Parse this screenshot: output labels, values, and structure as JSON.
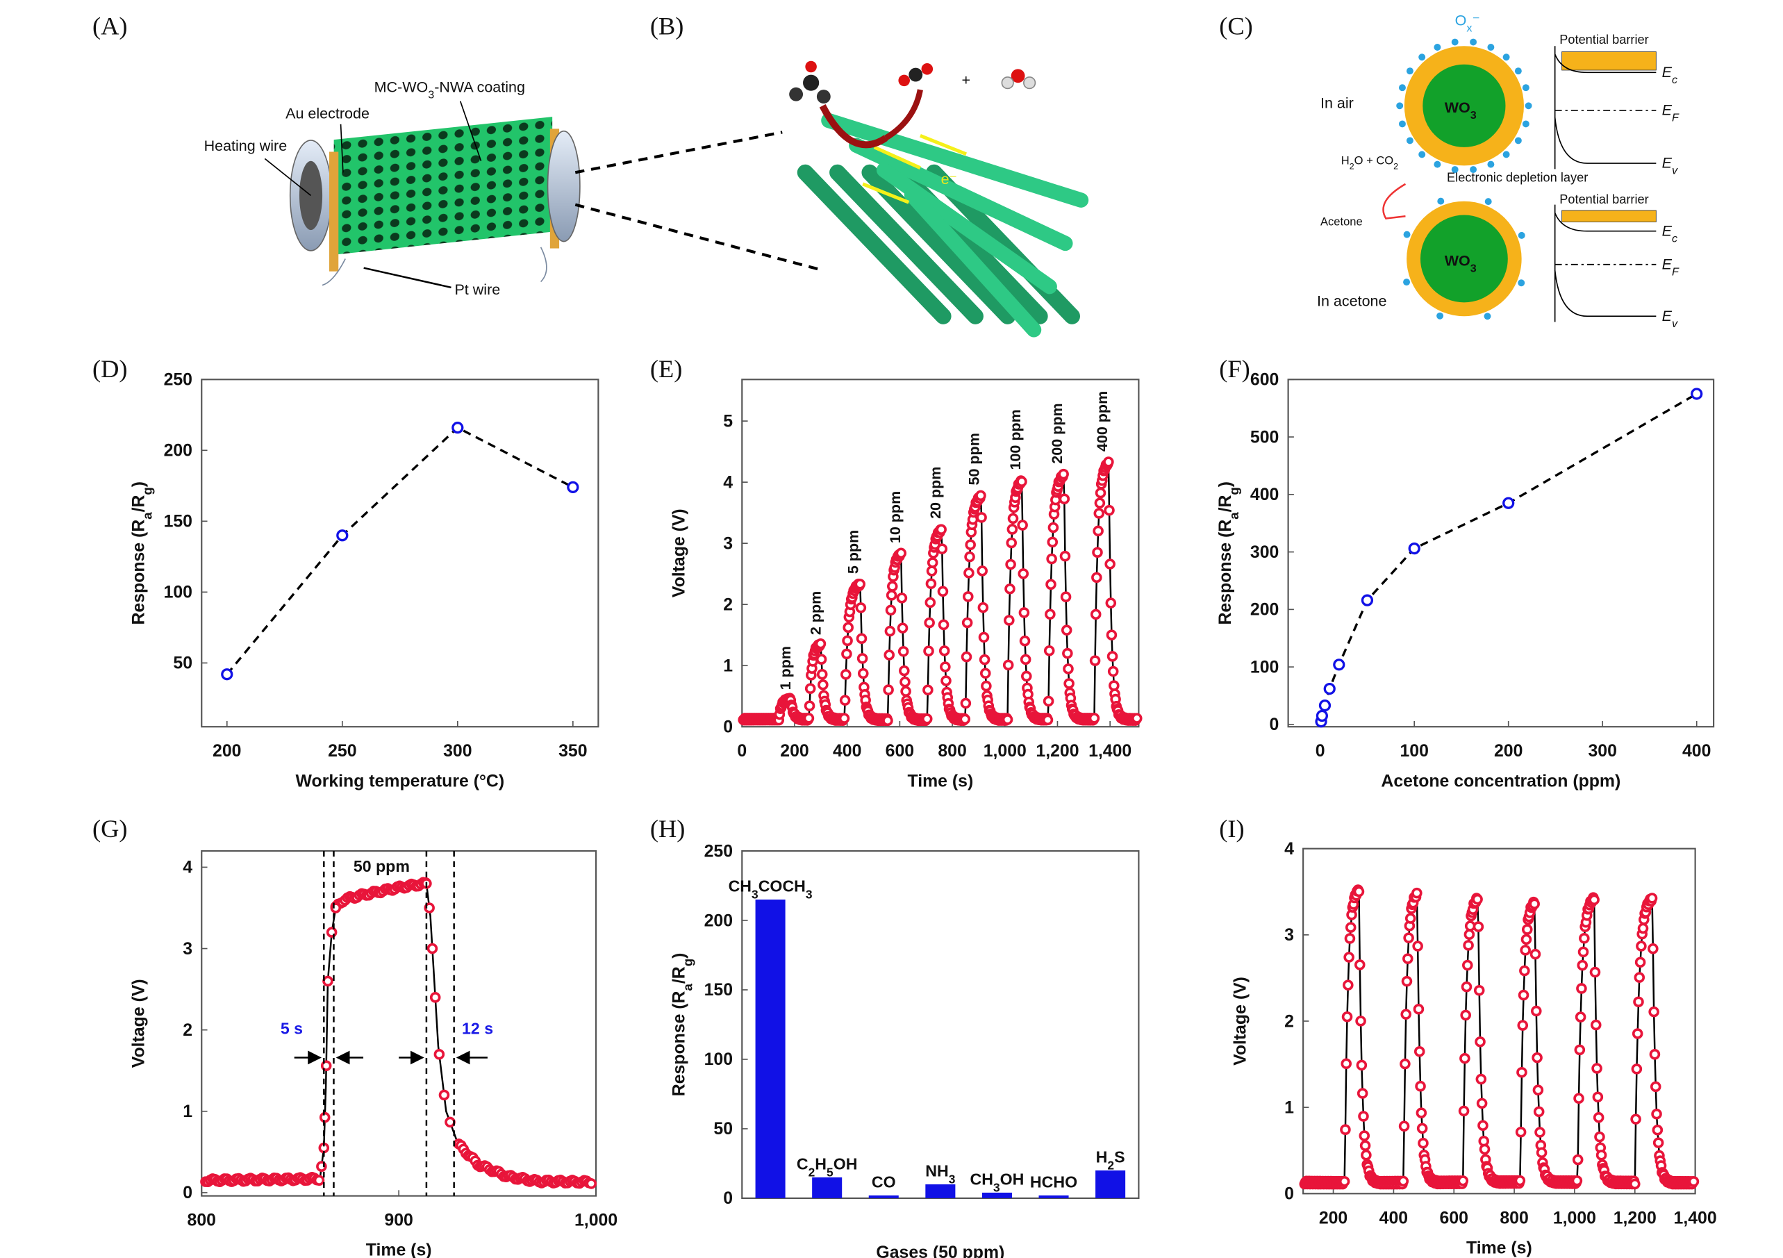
{
  "panel_labels": [
    "(A)",
    "(B)",
    "(C)",
    "(D)",
    "(E)",
    "(F)",
    "(G)",
    "(H)",
    "(I)"
  ],
  "panel_a": {
    "coating_label": "MC-WO_3-NWA coating",
    "electrode_label": "Au electrode",
    "heating_label": "Heating wire",
    "pt_label": "Pt wire"
  },
  "panel_b": {
    "electron_label": "e⁻",
    "plus": "+"
  },
  "panel_c": {
    "ox_label": "O_x⁻",
    "air_label": "In air",
    "acetone_env_label": "In acetone",
    "core_label": "WO_3",
    "products_label": "H_2O + CO_2",
    "acetone_label": "Acetone",
    "depletion_label": "Electronic depletion layer",
    "barrier_label": "Potential barrier",
    "ec": "E_c",
    "ef": "E_F",
    "ev": "E_v",
    "colors": {
      "shell": "#f6b21a",
      "core": "#12a12a",
      "ions": "#2ba3e0"
    }
  },
  "colors": {
    "marker": "#e8153a",
    "blue": "#1111e6",
    "line": "#000000"
  },
  "chart_data": [
    {
      "panel": "D",
      "type": "line",
      "xlabel": "Working temperature (°C)",
      "ylabel": "Response (R_a/R_g)",
      "x": [
        200,
        250,
        300,
        350
      ],
      "y": [
        42,
        140,
        216,
        174
      ],
      "xlim": [
        189,
        361
      ],
      "ylim": [
        5,
        250
      ],
      "xticks": [
        200,
        250,
        300,
        350
      ],
      "yticks": [
        50,
        100,
        150,
        200,
        250
      ],
      "xtick_labels": [
        "200",
        "250",
        "300",
        "350"
      ],
      "ytick_labels": [
        "50",
        "100",
        "150",
        "200",
        "250"
      ],
      "grid": false
    },
    {
      "panel": "E",
      "type": "line",
      "xlabel": "Time (s)",
      "ylabel": "Voltage (V)",
      "xlim": [
        0,
        1509
      ],
      "ylim": [
        0,
        5.68
      ],
      "xticks": [
        0,
        200,
        400,
        600,
        800,
        1000,
        1200,
        1400
      ],
      "yticks": [
        0,
        1,
        2,
        3,
        4,
        5
      ],
      "xtick_labels": [
        "0",
        "200",
        "400",
        "600",
        "800",
        "1,000",
        "1,200",
        "1,400"
      ],
      "ytick_labels": [
        "0",
        "1",
        "2",
        "3",
        "4",
        "5"
      ],
      "baseline": 0.12,
      "pulses": [
        {
          "label": "1 ppm",
          "on": 140,
          "off": 185,
          "peak": 0.45
        },
        {
          "label": "2 ppm",
          "on": 255,
          "off": 300,
          "peak": 1.35
        },
        {
          "label": "5 ppm",
          "on": 390,
          "off": 450,
          "peak": 2.35
        },
        {
          "label": "10 ppm",
          "on": 555,
          "off": 605,
          "peak": 2.85
        },
        {
          "label": "20 ppm",
          "on": 705,
          "off": 760,
          "peak": 3.25
        },
        {
          "label": "50 ppm",
          "on": 850,
          "off": 910,
          "peak": 3.8
        },
        {
          "label": "100 ppm",
          "on": 1010,
          "off": 1065,
          "peak": 4.05
        },
        {
          "label": "200 ppm",
          "on": 1165,
          "off": 1225,
          "peak": 4.15
        },
        {
          "label": "400 ppm",
          "on": 1340,
          "off": 1395,
          "peak": 4.35
        }
      ],
      "grid": false
    },
    {
      "panel": "F",
      "type": "line",
      "xlabel": "Acetone concentration (ppm)",
      "ylabel": "Response (R_a/R_g)",
      "x": [
        1,
        2,
        5,
        10,
        20,
        50,
        100,
        200,
        400
      ],
      "y": [
        5,
        15,
        33,
        62,
        104,
        216,
        306,
        385,
        575
      ],
      "xlim": [
        -34,
        418
      ],
      "ylim": [
        -4,
        600
      ],
      "xticks": [
        0,
        100,
        200,
        300,
        400
      ],
      "yticks": [
        0,
        100,
        200,
        300,
        400,
        500,
        600
      ],
      "xtick_labels": [
        "0",
        "100",
        "200",
        "300",
        "400"
      ],
      "ytick_labels": [
        "0",
        "100",
        "200",
        "300",
        "400",
        "500",
        "600"
      ],
      "grid": false
    },
    {
      "panel": "G",
      "type": "line",
      "xlabel": "Time (s)",
      "ylabel": "Voltage (V)",
      "xlim": [
        800,
        1000
      ],
      "ylim": [
        -0.04,
        4.2
      ],
      "xticks": [
        800,
        900,
        1000
      ],
      "yticks": [
        0,
        1,
        2,
        3,
        4
      ],
      "xtick_labels": [
        "800",
        "900",
        "1,000"
      ],
      "ytick_labels": [
        "0",
        "1",
        "2",
        "3",
        "4"
      ],
      "points": [
        [
          800,
          0.15
        ],
        [
          860,
          0.17
        ],
        [
          862,
          0.55
        ],
        [
          863,
          1.3
        ],
        [
          864,
          2.6
        ],
        [
          866,
          3.2
        ],
        [
          868,
          3.5
        ],
        [
          872,
          3.6
        ],
        [
          880,
          3.65
        ],
        [
          900,
          3.75
        ],
        [
          914,
          3.8
        ],
        [
          916,
          3.4
        ],
        [
          918,
          2.6
        ],
        [
          920,
          1.8
        ],
        [
          924,
          1.0
        ],
        [
          930,
          0.6
        ],
        [
          940,
          0.35
        ],
        [
          955,
          0.2
        ],
        [
          970,
          0.14
        ],
        [
          1000,
          0.13
        ]
      ],
      "markers": [
        0.15,
        0.55,
        1.3,
        2.6,
        3.2,
        3.5,
        3.8,
        3.4,
        2.6,
        1.8,
        1.0
      ],
      "dashed_lines": [
        862,
        867,
        914,
        928
      ],
      "annotations": {
        "conc": "50 ppm",
        "response_time": "5 s",
        "recovery_time": "12 s"
      },
      "grid": false
    },
    {
      "panel": "H",
      "type": "bar",
      "xlabel": "Gases (50 ppm)",
      "ylabel": "Response (R_a/R_g)",
      "categories": [
        "CH_3COCH_3",
        "C_2H_5OH",
        "CO",
        "NH_3",
        "CH_3OH",
        "HCHO",
        "H_2S"
      ],
      "values": [
        215,
        15,
        2,
        10,
        4,
        2,
        20
      ],
      "ylim": [
        0,
        250
      ],
      "yticks": [
        0,
        50,
        100,
        150,
        200,
        250
      ],
      "ytick_labels": [
        "0",
        "50",
        "100",
        "150",
        "200",
        "250"
      ],
      "grid": false
    },
    {
      "panel": "I",
      "type": "line",
      "xlabel": "Time (s)",
      "ylabel": "Voltage (V)",
      "xlim": [
        100,
        1400
      ],
      "ylim": [
        0,
        4
      ],
      "xticks": [
        200,
        400,
        600,
        800,
        1000,
        1200,
        1400
      ],
      "yticks": [
        0,
        1,
        2,
        3,
        4
      ],
      "xtick_labels": [
        "200",
        "400",
        "600",
        "800",
        "1,000",
        "1,200",
        "1,400"
      ],
      "ytick_labels": [
        "0",
        "1",
        "2",
        "3",
        "4"
      ],
      "baseline": 0.13,
      "pulses": [
        {
          "on": 238,
          "off": 285,
          "peak": 3.55
        },
        {
          "on": 433,
          "off": 478,
          "peak": 3.5
        },
        {
          "on": 630,
          "off": 680,
          "peak": 3.45
        },
        {
          "on": 820,
          "off": 868,
          "peak": 3.4
        },
        {
          "on": 1010,
          "off": 1065,
          "peak": 3.45
        },
        {
          "on": 1200,
          "off": 1258,
          "peak": 3.45
        }
      ],
      "grid": false
    }
  ]
}
